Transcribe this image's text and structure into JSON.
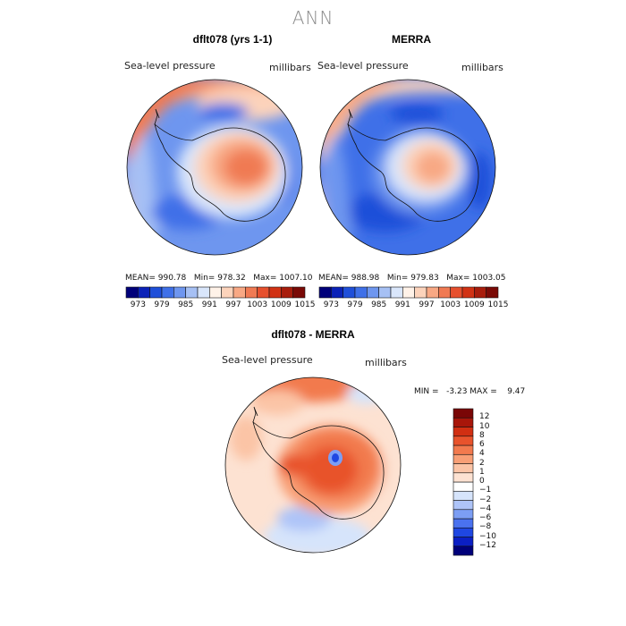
{
  "page_title": "ANN",
  "panels": {
    "model": {
      "title": "dflt078 (yrs 1-1)",
      "variable": "Sea-level pressure",
      "units": "millibars",
      "stats": "MEAN= 990.78   Min= 978.32   Max= 1007.10"
    },
    "obs": {
      "title": "MERRA",
      "variable": "Sea-level pressure",
      "units": "millibars",
      "stats": "MEAN= 988.98   Min= 979.83   Max= 1003.05"
    },
    "diff": {
      "title": "dflt078 - MERRA",
      "variable": "Sea-level pressure",
      "units": "millibars",
      "stats": "MIN =   -3.23 MAX =    9.47"
    }
  },
  "colorbar_top": {
    "colors": [
      "#00007a",
      "#0b22b8",
      "#1f4fd9",
      "#3f70e8",
      "#6e96ef",
      "#a6c0f4",
      "#d9e6fb",
      "#fff2e8",
      "#fcd3bb",
      "#f8a884",
      "#f07a53",
      "#e6502e",
      "#d13214",
      "#a81d0c",
      "#7a0a06"
    ],
    "ticks": [
      "973",
      "979",
      "985",
      "991",
      "997",
      "1003",
      "1009",
      "1015"
    ]
  },
  "colorbar_diff": {
    "colors": [
      "#00007a",
      "#0b1fc4",
      "#1f47e2",
      "#4a72ef",
      "#7c9ef4",
      "#aec4f8",
      "#d6e4fb",
      "#ffffff",
      "#fde2d2",
      "#fbc4a6",
      "#f89f76",
      "#f27a4e",
      "#e8532c",
      "#d12f12",
      "#a8160a",
      "#7a0606"
    ],
    "ticks": [
      "12",
      "10",
      "8",
      "6",
      "4",
      "2",
      "1",
      "0",
      "−1",
      "−2",
      "−4",
      "−6",
      "−8",
      "−10",
      "−12"
    ]
  }
}
